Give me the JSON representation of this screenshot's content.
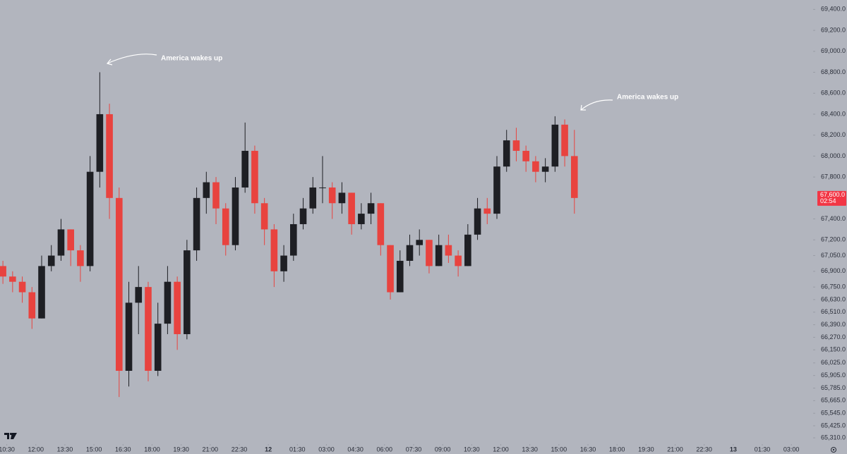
{
  "chart_data": {
    "type": "candlestick",
    "up_color": "#1e1f24",
    "down_color": "#e8433f",
    "x": [
      10.3,
      10.8,
      11.3,
      11.8,
      12.3,
      12.8,
      13.3,
      13.8,
      14.3,
      14.8,
      15.3,
      15.8,
      16.3,
      16.8,
      17.3,
      17.8,
      18.3,
      18.8,
      19.3,
      19.8,
      20.3,
      20.8,
      21.3,
      21.8,
      22.3,
      22.8,
      23.3,
      23.8,
      24.3,
      24.8,
      25.3,
      25.8,
      26.3,
      26.8,
      27.3,
      27.8,
      28.3,
      28.8,
      29.3,
      29.8,
      30.3,
      30.8,
      31.3,
      31.8,
      32.3,
      32.8,
      33.3,
      33.8,
      34.3,
      34.8,
      35.3,
      35.8,
      36.3,
      36.8,
      37.3,
      37.8,
      38.3,
      38.8,
      39.3,
      39.8
    ],
    "open": [
      66950,
      66850,
      66800,
      66700,
      66450,
      66950,
      67050,
      67300,
      67100,
      66950,
      67850,
      68400,
      67600,
      65950,
      66600,
      66750,
      65950,
      66400,
      66800,
      66300,
      67100,
      67600,
      67750,
      67500,
      67150,
      67700,
      68050,
      67550,
      67300,
      66900,
      67050,
      67350,
      67500,
      67700,
      67700,
      67550,
      67650,
      67350,
      67450,
      67550,
      67150,
      66700,
      67000,
      67150,
      67200,
      66950,
      67150,
      67050,
      66950,
      67250,
      67500,
      67450,
      67900,
      68150,
      68050,
      67950,
      67850,
      67900,
      68300,
      68000
    ],
    "high": [
      67000,
      66900,
      66850,
      66750,
      67050,
      67150,
      67400,
      67300,
      67150,
      68000,
      68800,
      68500,
      67700,
      66800,
      66950,
      66800,
      66600,
      66950,
      66850,
      67200,
      67700,
      67850,
      67800,
      67550,
      67800,
      68320,
      68100,
      67600,
      67350,
      67150,
      67450,
      67600,
      67800,
      68000,
      67750,
      67750,
      67650,
      67550,
      67650,
      67550,
      67150,
      67100,
      67250,
      67300,
      67200,
      67250,
      67250,
      67100,
      67350,
      67600,
      67600,
      68000,
      68250,
      68270,
      68100,
      68000,
      67980,
      68380,
      68350,
      68250
    ],
    "low": [
      66780,
      66700,
      66600,
      66350,
      66450,
      66900,
      67000,
      66950,
      66800,
      66900,
      67700,
      67400,
      65700,
      65800,
      66300,
      65850,
      65900,
      66300,
      66150,
      66250,
      67000,
      67450,
      67350,
      67050,
      67100,
      67650,
      67450,
      67150,
      66750,
      66800,
      67000,
      67300,
      67450,
      67550,
      67400,
      67450,
      67250,
      67300,
      67350,
      67050,
      66630,
      66700,
      66950,
      67050,
      66880,
      66950,
      66980,
      66850,
      66950,
      67200,
      67350,
      67400,
      67850,
      67950,
      67850,
      67750,
      67750,
      67850,
      67900,
      67450
    ],
    "close": [
      66850,
      66800,
      66700,
      66450,
      66950,
      67050,
      67300,
      67100,
      66950,
      67850,
      68400,
      67600,
      65950,
      66600,
      66750,
      65950,
      66400,
      66800,
      66300,
      67100,
      67600,
      67750,
      67500,
      67150,
      67700,
      68050,
      67550,
      67300,
      66900,
      67050,
      67350,
      67500,
      67700,
      67700,
      67550,
      67650,
      67350,
      67450,
      67550,
      67150,
      66700,
      67000,
      67150,
      67200,
      66950,
      67150,
      67050,
      66950,
      67250,
      67500,
      67450,
      67900,
      68150,
      68050,
      67950,
      67850,
      67900,
      68300,
      68000,
      67600
    ],
    "xlim": [
      10.15,
      52.05
    ],
    "ylim": [
      65250,
      69490
    ],
    "xticks": [
      {
        "value": 10.5,
        "label": "10:30"
      },
      {
        "value": 12,
        "label": "12:00"
      },
      {
        "value": 13.5,
        "label": "13:30"
      },
      {
        "value": 15,
        "label": "15:00"
      },
      {
        "value": 16.5,
        "label": "16:30"
      },
      {
        "value": 18,
        "label": "18:00"
      },
      {
        "value": 19.5,
        "label": "19:30"
      },
      {
        "value": 21,
        "label": "21:00"
      },
      {
        "value": 22.5,
        "label": "22:30"
      },
      {
        "value": 24,
        "label": "12"
      },
      {
        "value": 25.5,
        "label": "01:30"
      },
      {
        "value": 27,
        "label": "03:00"
      },
      {
        "value": 28.5,
        "label": "04:30"
      },
      {
        "value": 30,
        "label": "06:00"
      },
      {
        "value": 31.5,
        "label": "07:30"
      },
      {
        "value": 33,
        "label": "09:00"
      },
      {
        "value": 34.5,
        "label": "10:30"
      },
      {
        "value": 36,
        "label": "12:00"
      },
      {
        "value": 37.5,
        "label": "13:30"
      },
      {
        "value": 39,
        "label": "15:00"
      },
      {
        "value": 40.5,
        "label": "16:30"
      },
      {
        "value": 42,
        "label": "18:00"
      },
      {
        "value": 43.5,
        "label": "19:30"
      },
      {
        "value": 45,
        "label": "21:00"
      },
      {
        "value": 46.5,
        "label": "22:30"
      },
      {
        "value": 48,
        "label": "13"
      },
      {
        "value": 49.5,
        "label": "01:30"
      },
      {
        "value": 51,
        "label": "03:00"
      }
    ],
    "yticks": [
      {
        "value": 69400,
        "label": "69,400.0"
      },
      {
        "value": 69200,
        "label": "69,200.0"
      },
      {
        "value": 69000,
        "label": "69,000.0"
      },
      {
        "value": 68800,
        "label": "68,800.0"
      },
      {
        "value": 68600,
        "label": "68,600.0"
      },
      {
        "value": 68400,
        "label": "68,400.0"
      },
      {
        "value": 68200,
        "label": "68,200.0"
      },
      {
        "value": 68000,
        "label": "68,000.0"
      },
      {
        "value": 67800,
        "label": "67,800.0"
      },
      {
        "value": 67400,
        "label": "67,400.0"
      },
      {
        "value": 67200,
        "label": "67,200.0"
      },
      {
        "value": 67050,
        "label": "67,050.0"
      },
      {
        "value": 66900,
        "label": "66,900.0"
      },
      {
        "value": 66750,
        "label": "66,750.0"
      },
      {
        "value": 66630,
        "label": "66,630.0"
      },
      {
        "value": 66510,
        "label": "66,510.0"
      },
      {
        "value": 66390,
        "label": "66,390.0"
      },
      {
        "value": 66270,
        "label": "66,270.0"
      },
      {
        "value": 66150,
        "label": "66,150.0"
      },
      {
        "value": 66025,
        "label": "66,025.0"
      },
      {
        "value": 65905,
        "label": "65,905.0"
      },
      {
        "value": 65785,
        "label": "65,785.0"
      },
      {
        "value": 65665,
        "label": "65,665.0"
      },
      {
        "value": 65545,
        "label": "65,545.0"
      },
      {
        "value": 65425,
        "label": "65,425.0"
      },
      {
        "value": 65310,
        "label": "65,310.0"
      }
    ],
    "last_price": {
      "value": 67600,
      "label": "67,600.0"
    },
    "countdown": "02:54",
    "annotations": [
      "America wakes up",
      "America wakes up"
    ]
  }
}
